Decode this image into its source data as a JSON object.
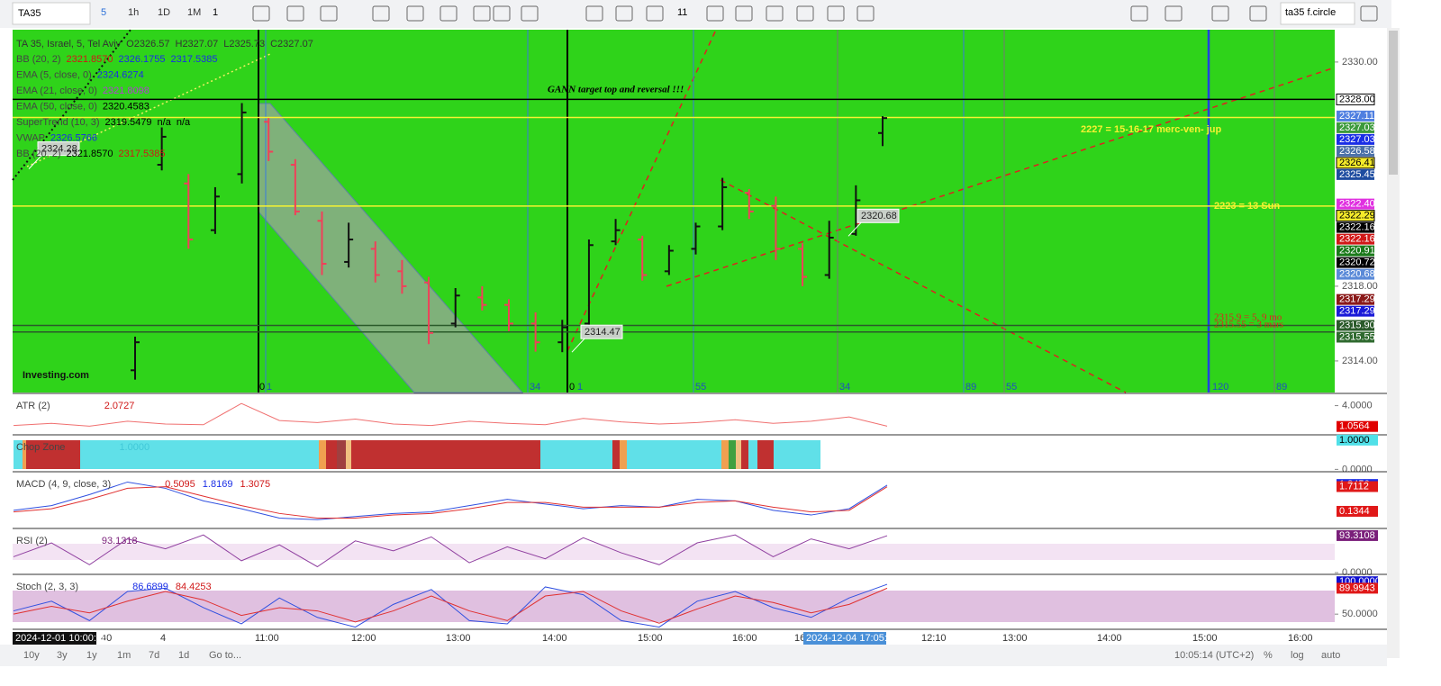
{
  "toolbar": {
    "symbol": "TA35",
    "intervals": [
      "5",
      "1h",
      "1D",
      "1M"
    ],
    "multiplier": "1",
    "font_size": "11",
    "layout_name": "ta35 f.circle"
  },
  "chart_data": {
    "type": "ohlc",
    "title": "TA 35, Israel, 5, Tel Aviv",
    "ohlc_labels": [
      "O2326.57",
      "H2327.07",
      "L2325.73",
      "C2327.07"
    ],
    "watermark": "Investing.com",
    "up_color": "#111111",
    "down_color": "#f0405a",
    "background": "#2fd31a",
    "bars": [
      [
        2313.5,
        2315.3,
        2313,
        2315
      ],
      [
        2324.5,
        2326.5,
        2324.2,
        2326
      ],
      [
        2323.5,
        2324,
        2320,
        2320.5
      ],
      [
        2321,
        2323.3,
        2320.8,
        2322.8
      ],
      [
        2324,
        2327.8,
        2323.5,
        2327.3
      ],
      [
        2326.8,
        2327,
        2324.7,
        2325.2
      ],
      [
        2324.5,
        2324.8,
        2321.8,
        2322
      ],
      [
        2321.5,
        2322,
        2318.6,
        2319.2
      ],
      [
        2319.3,
        2321.4,
        2319,
        2320.5
      ],
      [
        2320,
        2320.4,
        2318.2,
        2318.6
      ],
      [
        2318.8,
        2319.4,
        2317.6,
        2318
      ],
      [
        2318.2,
        2318.5,
        2314.9,
        2315.5
      ],
      [
        2316,
        2317.9,
        2315.8,
        2317.5
      ],
      [
        2317.4,
        2318,
        2316.7,
        2317
      ],
      [
        2317,
        2317.3,
        2315.6,
        2316
      ],
      [
        2316,
        2316.6,
        2314.5,
        2315
      ],
      [
        2315,
        2316.2,
        2314.47,
        2315.8
      ],
      [
        2316,
        2320.5,
        2315.8,
        2320.2
      ],
      [
        2320.4,
        2321.6,
        2320.2,
        2321
      ],
      [
        2320.5,
        2320.7,
        2318.3,
        2318.6
      ],
      [
        2318.8,
        2320.2,
        2318.6,
        2319.9
      ],
      [
        2320,
        2321.4,
        2319.7,
        2321.2
      ],
      [
        2321.2,
        2323.8,
        2321,
        2323.3
      ],
      [
        2323,
        2323.2,
        2321.6,
        2322
      ],
      [
        2322.3,
        2322.8,
        2319.4,
        2320
      ],
      [
        2320,
        2320.3,
        2318,
        2318.5
      ],
      [
        2318.6,
        2321.5,
        2318.4,
        2320.6
      ],
      [
        2320.8,
        2323.4,
        2320.7,
        2322.6
      ],
      [
        2326.2,
        2327.1,
        2325.5,
        2327
      ]
    ],
    "ylim": [
      2312.31,
      2331.73
    ],
    "yticks": [
      {
        "value": 2330,
        "label": "2330.00"
      },
      {
        "value": 2318,
        "label": "2318.00"
      },
      {
        "value": 2314,
        "label": "2314.00"
      }
    ],
    "price_tags": [
      {
        "value": 2328,
        "label": "2328.00",
        "color": "#ffffff"
      },
      {
        "value": 2327.11,
        "label": "2327.11",
        "color": "#4f7fe0"
      },
      {
        "value": 2327.03,
        "label": "2327.03",
        "color": "#3c9a3c"
      },
      {
        "value": 2327.03,
        "label": "2327.03",
        "color": "#1a2ee6"
      },
      {
        "value": 2326.58,
        "label": "2326.58",
        "color": "#4a70a8"
      },
      {
        "value": 2326.41,
        "label": "2326.41",
        "color": "#f4ea2a"
      },
      {
        "value": 2325.45,
        "label": "2325.45",
        "color": "#1e4ca0"
      },
      {
        "value": 2322.4,
        "label": "2322.40",
        "color": "#e030e0"
      },
      {
        "value": 2322.29,
        "label": "2322.29",
        "color": "#f4ea2a"
      },
      {
        "value": 2322.16,
        "label": "2322.16",
        "color": "#000000"
      },
      {
        "value": 2322.16,
        "label": "2322.16",
        "color": "#d01818"
      },
      {
        "value": 2320.91,
        "label": "2320.91",
        "color": "#1a7a1a"
      },
      {
        "value": 2320.72,
        "label": "2320.72",
        "color": "#000000"
      },
      {
        "value": 2320.68,
        "label": "2320.68",
        "color": "#5a8ad8"
      },
      {
        "value": 2317.29,
        "label": "2317.29",
        "color": "#8b1a1a"
      },
      {
        "value": 2317.29,
        "label": "2317.29",
        "color": "#1a1ad8"
      },
      {
        "value": 2315.9,
        "label": "2315.90",
        "color": "#2a5a2a"
      },
      {
        "value": 2315.55,
        "label": "2315.55",
        "color": "#2f6a2f"
      }
    ],
    "hlines": [
      {
        "value": 2328,
        "color": "#000000"
      },
      {
        "value": 2327.03,
        "color": "#f5f232"
      },
      {
        "value": 2322.29,
        "color": "#f5f232"
      },
      {
        "value": 2315.9,
        "color": "#2a5a2a"
      },
      {
        "value": 2315.55,
        "color": "#2a5a2a"
      }
    ],
    "callouts": [
      2324.28,
      2314.47,
      2320.68
    ],
    "indicators": [
      {
        "name": "BB (20, 2)",
        "values": [
          "2321.8570",
          "2326.1755",
          "2317.5385"
        ],
        "colors": [
          "#d01818",
          "#1a2ee6",
          "#1a2ee6"
        ]
      },
      {
        "name": "EMA (5, close, 0)",
        "values": [
          "2324.6274"
        ],
        "colors": [
          "#1a2ee6"
        ]
      },
      {
        "name": "EMA (21, close, 0)",
        "values": [
          "2321.8098"
        ],
        "colors": [
          "#b040d0"
        ]
      },
      {
        "name": "EMA (50, close, 0)",
        "values": [
          "2320.4583"
        ],
        "colors": [
          "#000000"
        ]
      },
      {
        "name": "SuperTrend (10, 3)",
        "values": [
          "2319.5479",
          "n/a",
          "n/a"
        ],
        "colors": [
          "#000000",
          "#000000",
          "#000000"
        ]
      },
      {
        "name": "VWAP",
        "values": [
          "2326.5766"
        ],
        "colors": [
          "#1a2ee6"
        ]
      },
      {
        "name": "BB (20, 2)",
        "values": [
          "2321.8570",
          "2317.5385"
        ],
        "colors": [
          "#000000",
          "#d01818"
        ]
      }
    ],
    "annotations": [
      {
        "text": "GANN target top and reversal !!!",
        "color": "#000000"
      },
      {
        "text": "2227 = 15-16-17 merc-ven- jup",
        "color": "#f5f232"
      },
      {
        "text": "2223 = 13 Sun",
        "color": "#f5f232"
      },
      {
        "text": "2315.9 = 5, 9 mo",
        "color": "#e02020"
      },
      {
        "text": "2315.55 = 3 mars",
        "color": "#e02020"
      }
    ],
    "fib_labels": [
      "0",
      "1",
      "34",
      "0",
      "1",
      "55",
      "34",
      "89",
      "55",
      "120",
      "89"
    ],
    "time_labels": [
      "40",
      "4",
      "11:00",
      "12:00",
      "13:00",
      "14:00",
      "15:00",
      "16:00",
      "16",
      "12:10",
      "13:00",
      "14:00",
      "15:00",
      "16:00"
    ],
    "time_highlights": [
      "2024-12-01 10:00:00",
      "2024-12-04 17:05:00"
    ],
    "panes": [
      {
        "name": "ATR (2)",
        "values_text": [
          "2.0727"
        ],
        "text_colors": [
          "#d01818"
        ],
        "ylim": [
          0,
          5.6
        ],
        "ticks": [
          {
            "value": 4,
            "label": "4.0000"
          }
        ],
        "tags": [
          {
            "value": 1.0564,
            "label": "1.0564",
            "color": "#e00000"
          }
        ],
        "series": [
          {
            "color": "#f07070",
            "values": [
              1.2,
              1.5,
              1.1,
              1.8,
              1.4,
              1.3,
              4.3,
              1.9,
              1.6,
              2.1,
              1.4,
              1.2,
              1.8,
              1.5,
              1.3,
              2.2,
              1.7,
              1.4,
              1.6,
              2.0,
              1.5,
              1.8,
              2.4,
              1.1
            ]
          }
        ]
      },
      {
        "name": "Chop Zone",
        "values_text": [
          "1.0000"
        ],
        "text_colors": [
          "#40c8d8"
        ],
        "ylim": [
          -0.05,
          1.15
        ],
        "ticks": [
          {
            "value": 0,
            "label": "0.0000"
          }
        ],
        "tags": [
          {
            "value": 1,
            "label": "1.0000",
            "color": "#50e0e8"
          }
        ],
        "series": []
      },
      {
        "name": "MACD (4, 9, close, 3)",
        "values_text": [
          "0.5095",
          "1.8169",
          "1.3075"
        ],
        "text_colors": [
          "#d01818",
          "#1a2ee6",
          "#d01818"
        ],
        "ylim": [
          -0.9,
          2.6
        ],
        "ticks": [],
        "tags": [
          {
            "value": 1.8456,
            "label": "1.8456",
            "color": "#1a2ee6"
          },
          {
            "value": 1.7112,
            "label": "1.7112",
            "color": "#e01818"
          },
          {
            "value": 0.1344,
            "label": "0.1344",
            "color": "#e01818"
          }
        ],
        "series": [
          {
            "color": "#3050e0",
            "values": [
              0.2,
              0.5,
              1.2,
              2.0,
              1.6,
              0.8,
              0.3,
              -0.3,
              -0.4,
              -0.2,
              0.0,
              0.1,
              0.5,
              0.9,
              0.6,
              0.3,
              0.5,
              0.4,
              0.9,
              0.8,
              0.2,
              -0.1,
              0.3,
              1.8
            ]
          },
          {
            "color": "#e03030",
            "values": [
              0.1,
              0.3,
              0.9,
              1.6,
              1.7,
              1.1,
              0.5,
              0.0,
              -0.3,
              -0.3,
              -0.1,
              0.0,
              0.3,
              0.7,
              0.7,
              0.4,
              0.4,
              0.4,
              0.7,
              0.8,
              0.4,
              0.1,
              0.2,
              1.7
            ]
          }
        ]
      },
      {
        "name": "RSI (2)",
        "values_text": [
          "93.1318"
        ],
        "text_colors": [
          "#7a1f7a"
        ],
        "ylim": [
          -2,
          109
        ],
        "ticks": [
          {
            "value": 0,
            "label": "0.0000"
          }
        ],
        "tags": [
          {
            "value": 93.3108,
            "label": "93.3108",
            "color": "#7a1f7a"
          }
        ],
        "series": [
          {
            "color": "#9040a0",
            "values": [
              40,
              75,
              20,
              85,
              60,
              95,
              30,
              70,
              15,
              80,
              55,
              90,
              25,
              65,
              35,
              88,
              50,
              20,
              75,
              95,
              40,
              85,
              60,
              93
            ]
          }
        ]
      },
      {
        "name": "Stoch (2, 3, 3)",
        "values_text": [
          "86.6899",
          "84.4253"
        ],
        "text_colors": [
          "#1a2ee6",
          "#d01818"
        ],
        "ylim": [
          28,
          110
        ],
        "ticks": [
          {
            "value": 50,
            "label": "50.0000"
          }
        ],
        "tags": [
          {
            "value": 100,
            "label": "100.0000",
            "color": "#1010d0"
          },
          {
            "value": 89.9943,
            "label": "89.9943",
            "color": "#e01818"
          }
        ],
        "series": [
          {
            "color": "#3050e0",
            "values": [
              55,
              70,
              40,
              85,
              90,
              60,
              35,
              75,
              45,
              30,
              65,
              88,
              40,
              35,
              92,
              80,
              40,
              30,
              70,
              85,
              60,
              45,
              75,
              96
            ]
          },
          {
            "color": "#e03030",
            "values": [
              50,
              62,
              52,
              70,
              85,
              72,
              48,
              60,
              55,
              38,
              55,
              78,
              55,
              40,
              78,
              85,
              55,
              36,
              58,
              78,
              68,
              52,
              65,
              90
            ]
          }
        ]
      }
    ],
    "bottom_bar": {
      "ranges": [
        "10y",
        "3y",
        "1y",
        "1m",
        "7d",
        "1d"
      ],
      "goto": "Go to...",
      "clock": "10:05:14 (UTC+2)",
      "scale_buttons": [
        "%",
        "log",
        "auto"
      ]
    }
  }
}
